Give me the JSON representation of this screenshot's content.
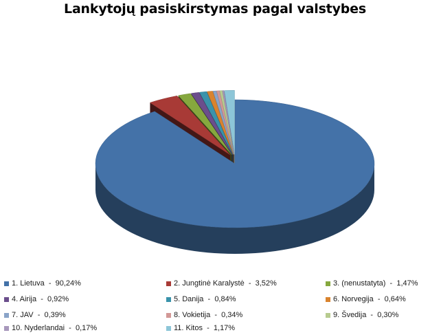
{
  "chart_data": {
    "type": "pie",
    "variant": "3d-exploded",
    "title": "Lankytojų pasiskirstymas pagal valstybes",
    "legend_position": "bottom",
    "slices": [
      {
        "label": "1. Lietuva",
        "value": 90.24,
        "value_text": "90,24%",
        "color": "#4472A8"
      },
      {
        "label": "2. Jungtinė Karalystė",
        "value": 3.52,
        "value_text": "3,52%",
        "color": "#A83A36"
      },
      {
        "label": "3. (nenustatyta)",
        "value": 1.47,
        "value_text": "1,47%",
        "color": "#86A83E"
      },
      {
        "label": "4. Airija",
        "value": 0.92,
        "value_text": "0,92%",
        "color": "#6B4E8C"
      },
      {
        "label": "5. Danija",
        "value": 0.84,
        "value_text": "0,84%",
        "color": "#3A93AB"
      },
      {
        "label": "6. Norvegija",
        "value": 0.64,
        "value_text": "0,64%",
        "color": "#D9832E"
      },
      {
        "label": "7. JAV",
        "value": 0.39,
        "value_text": "0,39%",
        "color": "#8AA4C8"
      },
      {
        "label": "8. Vokietija",
        "value": 0.34,
        "value_text": "0,34%",
        "color": "#D29896"
      },
      {
        "label": "9. Švedija",
        "value": 0.3,
        "value_text": "0,30%",
        "color": "#B7CB8F"
      },
      {
        "label": "10. Nyderlandai",
        "value": 0.17,
        "value_text": "0,17%",
        "color": "#A898BC"
      },
      {
        "label": "11. Kitos",
        "value": 1.17,
        "value_text": "1,17%",
        "color": "#8DC6D8"
      }
    ]
  }
}
